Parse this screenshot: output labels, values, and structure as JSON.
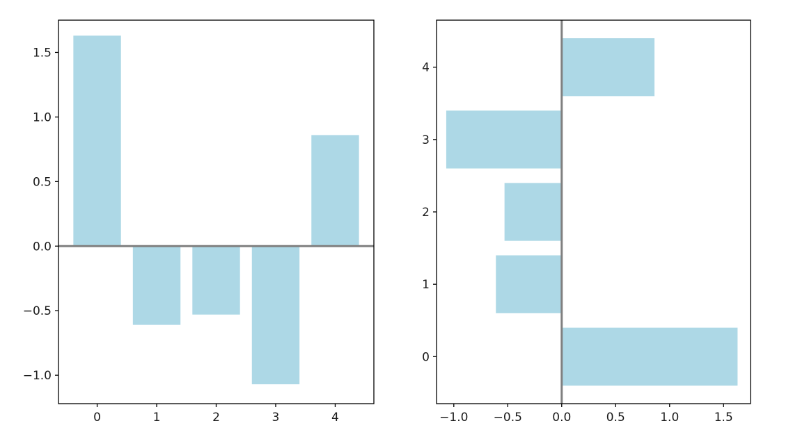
{
  "chart_data": [
    {
      "type": "bar",
      "orientation": "vertical",
      "title": "",
      "xlabel": "",
      "ylabel": "",
      "categories": [
        0,
        1,
        2,
        3,
        4
      ],
      "values": [
        1.63,
        -0.61,
        -0.53,
        -1.07,
        0.86
      ],
      "xlim": [
        -0.65,
        4.65
      ],
      "ylim": [
        -1.22,
        1.75
      ],
      "xticks": [
        0,
        1,
        2,
        3,
        4
      ],
      "xtick_labels": [
        "0",
        "1",
        "2",
        "3",
        "4"
      ],
      "yticks": [
        -1.0,
        -0.5,
        0.0,
        0.5,
        1.0,
        1.5
      ],
      "ytick_labels": [
        "−1.0",
        "−0.5",
        "0.0",
        "0.5",
        "1.0",
        "1.5"
      ],
      "zero_line": true,
      "grid": false,
      "bar_color": "#add8e6",
      "zero_line_color": "#808080"
    },
    {
      "type": "bar",
      "orientation": "horizontal",
      "title": "",
      "xlabel": "",
      "ylabel": "",
      "categories": [
        0,
        1,
        2,
        3,
        4
      ],
      "values": [
        1.63,
        -0.61,
        -0.53,
        -1.07,
        0.86
      ],
      "xlim": [
        -1.16,
        1.75
      ],
      "ylim": [
        -0.65,
        4.65
      ],
      "xticks": [
        -1.0,
        -0.5,
        0.0,
        0.5,
        1.0,
        1.5
      ],
      "xtick_labels": [
        "−1.0",
        "−0.5",
        "0.0",
        "0.5",
        "1.0",
        "1.5"
      ],
      "yticks": [
        0,
        1,
        2,
        3,
        4
      ],
      "ytick_labels": [
        "0",
        "1",
        "2",
        "3",
        "4"
      ],
      "zero_line": true,
      "grid": false,
      "bar_color": "#add8e6",
      "zero_line_color": "#808080"
    }
  ]
}
